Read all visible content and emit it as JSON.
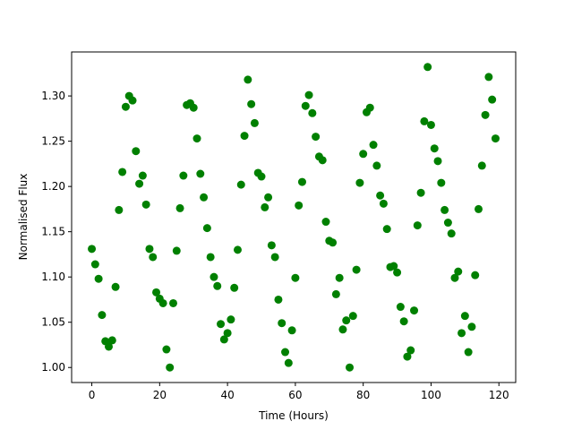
{
  "chart_data": {
    "type": "scatter",
    "xlabel": "Time (Hours)",
    "ylabel": "Normalised Flux",
    "color": "#008000",
    "x": [
      0,
      1,
      2,
      3,
      4,
      5,
      6,
      7,
      8,
      9,
      10,
      11,
      12,
      13,
      14,
      15,
      16,
      17,
      18,
      19,
      20,
      21,
      22,
      23,
      24,
      25,
      26,
      27,
      28,
      29,
      30,
      31,
      32,
      33,
      34,
      35,
      36,
      37,
      38,
      39,
      40,
      41,
      42,
      43,
      44,
      45,
      46,
      47,
      48,
      49,
      50,
      51,
      52,
      53,
      54,
      55,
      56,
      57,
      58,
      59,
      60,
      61,
      62,
      63,
      64,
      65,
      66,
      67,
      68,
      69,
      70,
      71,
      72,
      73,
      74,
      75,
      76,
      77,
      78,
      79,
      80,
      81,
      82,
      83,
      84,
      85,
      86,
      87,
      88,
      89,
      90,
      91,
      92,
      93,
      94,
      95,
      96,
      97,
      98,
      99,
      100,
      101,
      102,
      103,
      104,
      105,
      106,
      107,
      108,
      109,
      110,
      111,
      112,
      113,
      114,
      115,
      116,
      117,
      118,
      119
    ],
    "values": [
      1.131,
      1.114,
      1.098,
      1.058,
      1.029,
      1.023,
      1.03,
      1.089,
      1.174,
      1.216,
      1.288,
      1.3,
      1.295,
      1.239,
      1.203,
      1.212,
      1.18,
      1.131,
      1.122,
      1.083,
      1.076,
      1.071,
      1.02,
      1.0,
      1.071,
      1.129,
      1.176,
      1.212,
      1.29,
      1.292,
      1.287,
      1.253,
      1.214,
      1.188,
      1.154,
      1.122,
      1.1,
      1.09,
      1.048,
      1.031,
      1.038,
      1.053,
      1.088,
      1.13,
      1.202,
      1.256,
      1.318,
      1.291,
      1.27,
      1.215,
      1.211,
      1.177,
      1.188,
      1.135,
      1.122,
      1.075,
      1.049,
      1.017,
      1.005,
      1.041,
      1.099,
      1.179,
      1.205,
      1.289,
      1.301,
      1.281,
      1.255,
      1.233,
      1.229,
      1.161,
      1.14,
      1.138,
      1.081,
      1.099,
      1.042,
      1.052,
      1.0,
      1.057,
      1.108,
      1.204,
      1.236,
      1.282,
      1.287,
      1.246,
      1.223,
      1.19,
      1.181,
      1.153,
      1.111,
      1.112,
      1.105,
      1.067,
      1.051,
      1.012,
      1.019,
      1.063,
      1.157,
      1.193,
      1.272,
      1.332,
      1.268,
      1.242,
      1.228,
      1.204,
      1.174,
      1.16,
      1.148,
      1.099,
      1.106,
      1.038,
      1.057,
      1.017,
      1.045,
      1.102,
      1.175,
      1.223,
      1.279,
      1.321,
      1.296,
      1.253
    ],
    "xlim": [
      -5.95,
      124.95
    ],
    "xticks": [
      0,
      20,
      40,
      60,
      80,
      100,
      120
    ],
    "ylim": [
      0.9834,
      1.3486
    ],
    "yticks": [
      {
        "value": 1,
        "label": "1.00"
      },
      1.05,
      {
        "value": 1.1,
        "label": "1.10"
      },
      1.15,
      {
        "value": 1.2,
        "label": "1.20"
      },
      1.25,
      {
        "value": 1.3,
        "label": "1.30"
      }
    ]
  }
}
